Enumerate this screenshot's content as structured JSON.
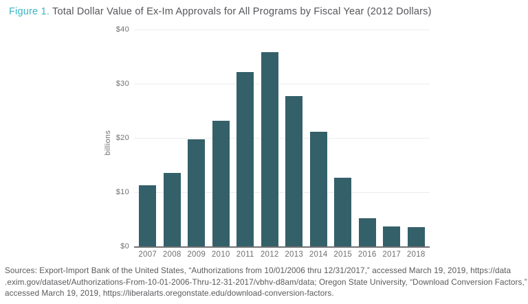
{
  "figure": {
    "label": "Figure 1.",
    "title": " Total Dollar Value of Ex-Im Approvals for All Programs by Fiscal Year (2012 Dollars)"
  },
  "chart_data": {
    "type": "bar",
    "title": "Total Dollar Value of Ex-Im Approvals for All Programs by Fiscal Year (2012 Dollars)",
    "categories": [
      "2007",
      "2008",
      "2009",
      "2010",
      "2011",
      "2012",
      "2013",
      "2014",
      "2015",
      "2016",
      "2017",
      "2018"
    ],
    "values": [
      11.3,
      13.5,
      19.7,
      23.2,
      32.1,
      35.8,
      27.7,
      21.1,
      12.7,
      5.2,
      3.7,
      3.6
    ],
    "xlabel": "",
    "ylabel": "billions",
    "ylim": [
      0,
      40
    ],
    "y_ticks": [
      "$0",
      "$10",
      "$20",
      "$30",
      "$40"
    ],
    "grid": "horizontal",
    "legend": "none",
    "bar_color": "#34606a"
  },
  "source": {
    "lines": [
      "Sources: Export-Import Bank of the United States, “Authorizations from 10/01/2006 thru 12/31/2017,” accessed March 19, 2019, https://data",
      ".exim.gov/dataset/Authorizations-From-10-01-2006-Thru-12-31-2017/vbhv-d8am/data; Oregon State University, “Download Conversion Factors,”",
      "accessed March 19, 2019, https://liberalarts.oregonstate.edu/download-conversion-factors."
    ]
  },
  "colors": {
    "bar": "#34606a",
    "figure_label": "#3cb5c6",
    "title_text": "#545559",
    "axis_line": "#707174",
    "gridline": "#ebebf1",
    "tick_text": "#6e6f72",
    "source_text": "#58595c"
  }
}
